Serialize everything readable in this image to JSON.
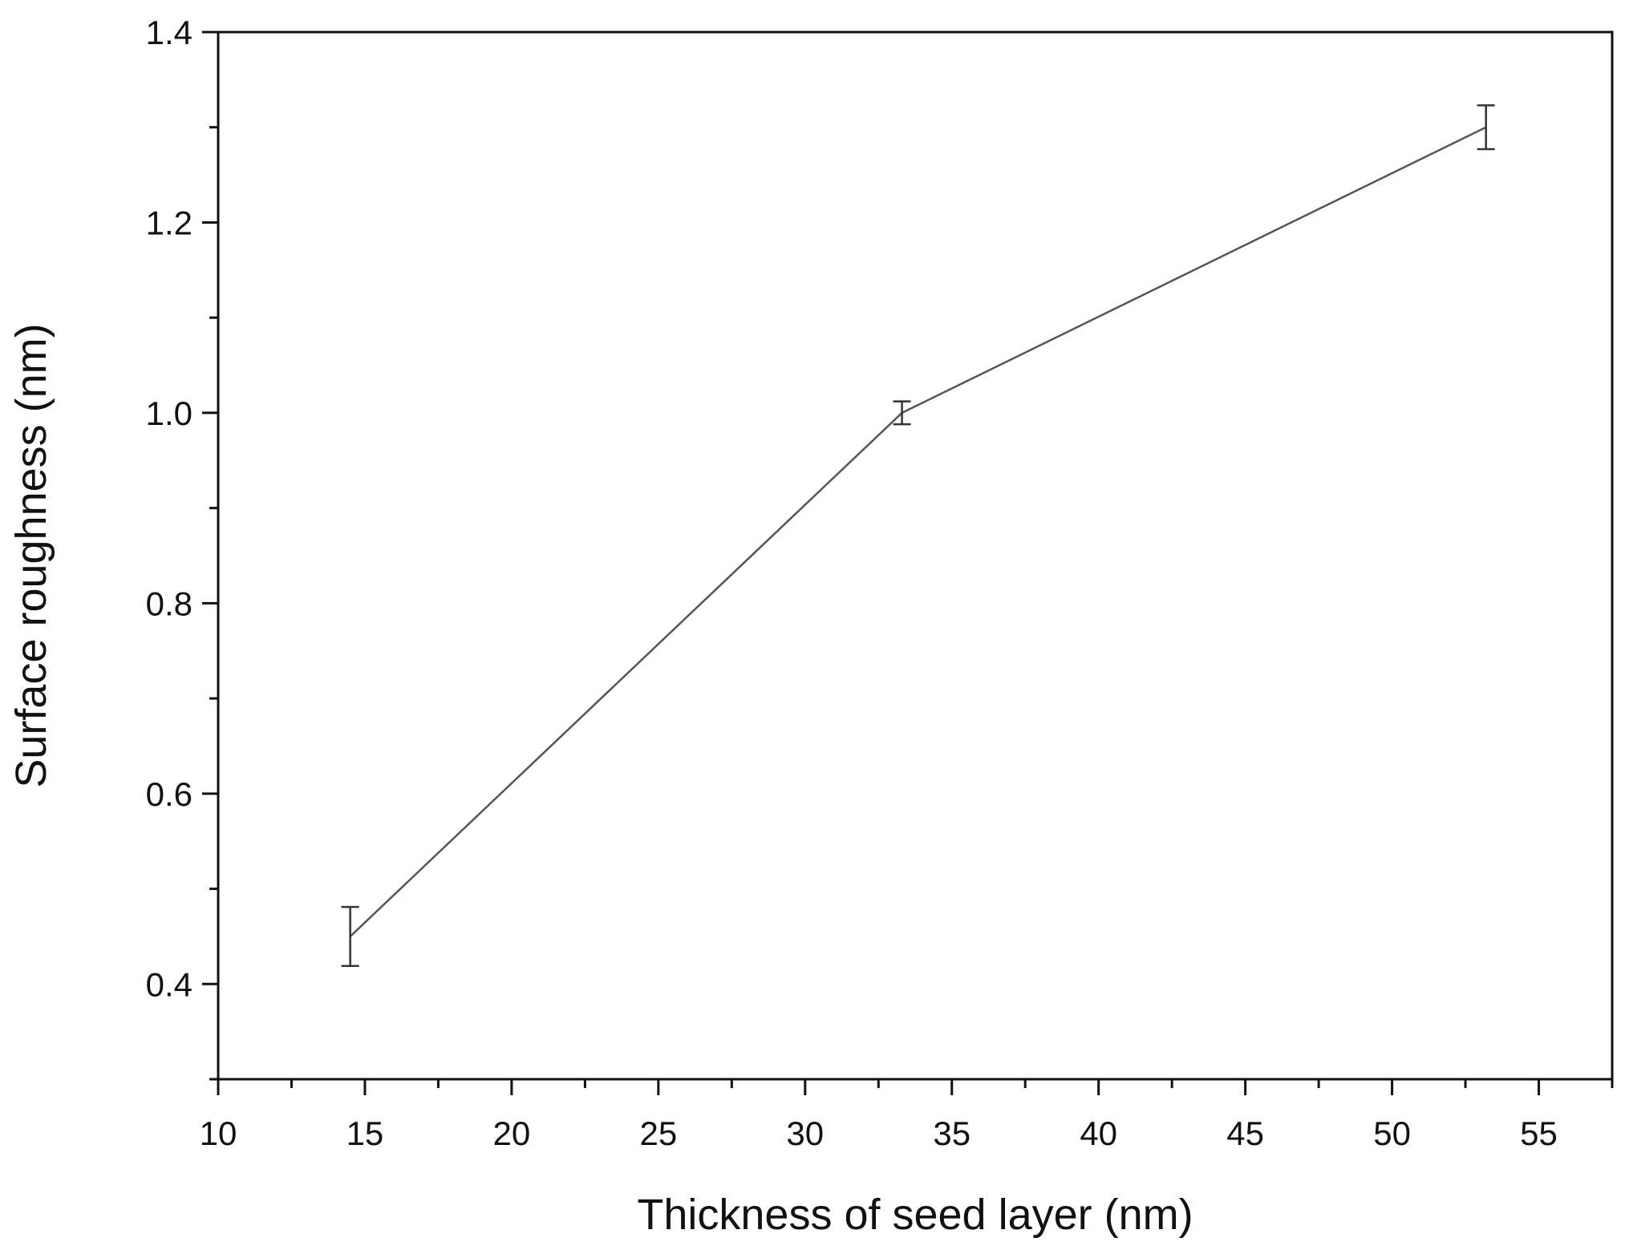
{
  "chart_data": {
    "type": "line",
    "title": "",
    "xlabel": "Thickness of seed layer (nm)",
    "ylabel": "Surface roughness (nm)",
    "xlim": [
      10,
      57.5
    ],
    "ylim": [
      0.3,
      1.4
    ],
    "x_ticks": [
      "10",
      "15",
      "20",
      "25",
      "30",
      "35",
      "40",
      "45",
      "50",
      "55"
    ],
    "y_ticks": [
      "0.4",
      "0.6",
      "0.8",
      "1.0",
      "1.2",
      "1.4"
    ],
    "series": [
      {
        "x": [
          14.5,
          33.3,
          53.2
        ],
        "y": [
          0.45,
          1.0,
          1.3
        ],
        "error": [
          0.031,
          0.012,
          0.023
        ]
      }
    ],
    "grid": false,
    "line_color": "#555555",
    "axis_color": "#111111"
  }
}
